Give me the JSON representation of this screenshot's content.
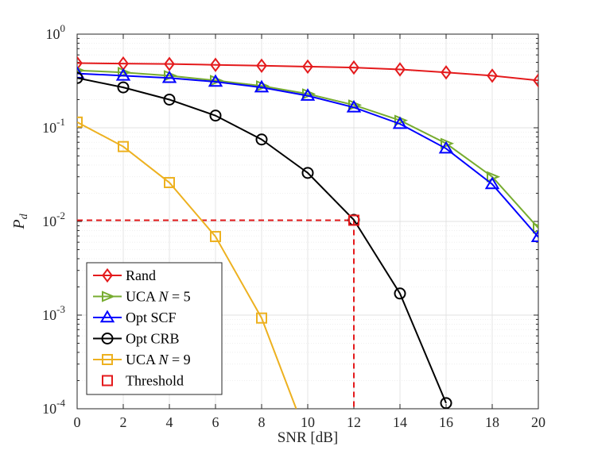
{
  "chart_data": {
    "type": "line",
    "xlabel": "SNR [dB]",
    "ylabel": "P",
    "ylabel_sub": "d",
    "xlim": [
      0,
      20
    ],
    "ylim": [
      0.0001,
      1
    ],
    "yscale": "log",
    "grid": true,
    "legend_position": "bottom-left",
    "x_ticks": [
      0,
      2,
      4,
      6,
      8,
      10,
      12,
      14,
      16,
      18,
      20
    ],
    "y_ticks": [
      {
        "value": 1,
        "base": "10",
        "exp": "0"
      },
      {
        "value": 0.1,
        "base": "10",
        "exp": "-1"
      },
      {
        "value": 0.01,
        "base": "10",
        "exp": "-2"
      },
      {
        "value": 0.001,
        "base": "10",
        "exp": "-3"
      },
      {
        "value": 0.0001,
        "base": "10",
        "exp": "-4"
      }
    ],
    "series": [
      {
        "name": "Rand",
        "color": "#e41a1c",
        "marker": "diamond",
        "x": [
          0,
          2,
          4,
          6,
          8,
          10,
          12,
          14,
          16,
          18,
          20
        ],
        "y": [
          0.49,
          0.485,
          0.48,
          0.47,
          0.46,
          0.45,
          0.44,
          0.42,
          0.39,
          0.36,
          0.32
        ]
      },
      {
        "name": "UCA N = 5",
        "color": "#77ac30",
        "marker": "triangle-right",
        "x": [
          0,
          2,
          4,
          6,
          8,
          10,
          12,
          14,
          16,
          18,
          20
        ],
        "y": [
          0.41,
          0.39,
          0.36,
          0.32,
          0.28,
          0.23,
          0.175,
          0.12,
          0.068,
          0.03,
          0.0085
        ]
      },
      {
        "name": "Opt SCF",
        "color": "#0000ff",
        "marker": "triangle-up",
        "x": [
          0,
          2,
          4,
          6,
          8,
          10,
          12,
          14,
          16,
          18,
          20
        ],
        "y": [
          0.38,
          0.36,
          0.34,
          0.31,
          0.27,
          0.22,
          0.165,
          0.11,
          0.06,
          0.025,
          0.0068
        ]
      },
      {
        "name": "Opt CRB",
        "color": "#000000",
        "marker": "circle",
        "x": [
          0,
          2,
          4,
          6,
          8,
          10,
          12,
          14,
          16
        ],
        "y": [
          0.34,
          0.27,
          0.2,
          0.135,
          0.075,
          0.033,
          0.0104,
          0.0017,
          0.000115
        ]
      },
      {
        "name": "UCA N = 9",
        "color": "#edb120",
        "marker": "square",
        "x": [
          0,
          2,
          4,
          6,
          8,
          9.5
        ],
        "y": [
          0.115,
          0.063,
          0.026,
          0.0069,
          0.00093,
          0.0001
        ]
      },
      {
        "name": "Threshold",
        "color": "#e41a1c",
        "marker": "square-open",
        "x": [
          12
        ],
        "y": [
          0.0103
        ]
      }
    ],
    "threshold_lines": {
      "x": 12,
      "y": 0.0103,
      "color": "#e41a1c",
      "style": "dashed"
    },
    "legend": [
      {
        "label": "Rand",
        "italic": "",
        "suffix": ""
      },
      {
        "label": "UCA ",
        "italic": "N",
        "suffix": " = 5"
      },
      {
        "label": "Opt SCF",
        "italic": "",
        "suffix": ""
      },
      {
        "label": "Opt CRB",
        "italic": "",
        "suffix": ""
      },
      {
        "label": "UCA ",
        "italic": "N",
        "suffix": " = 9"
      },
      {
        "label": "Threshold",
        "italic": "",
        "suffix": ""
      }
    ]
  }
}
